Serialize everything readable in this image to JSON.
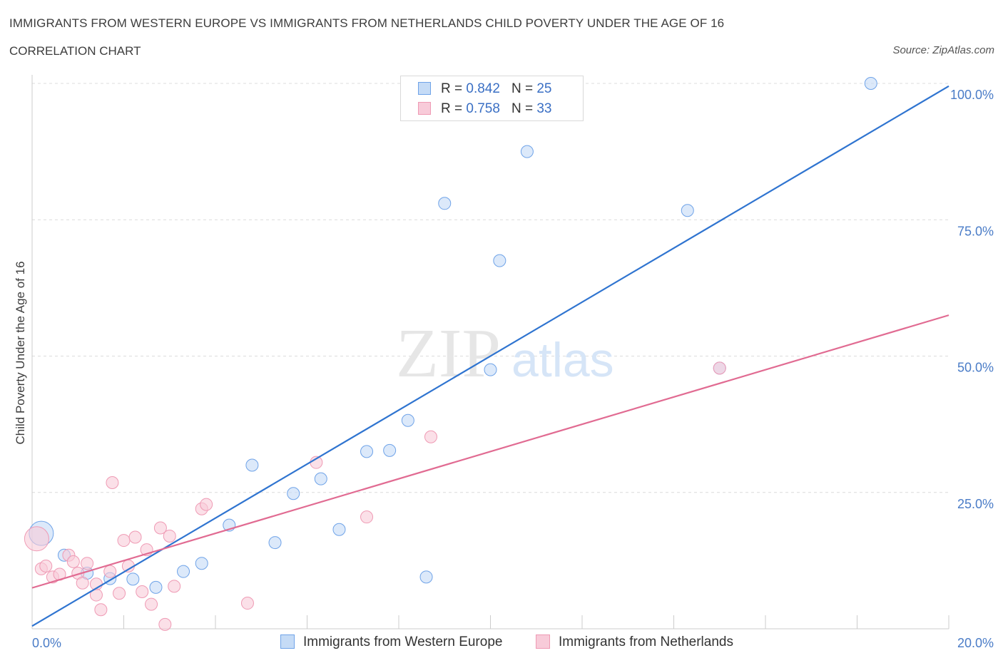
{
  "title": "IMMIGRANTS FROM WESTERN EUROPE VS IMMIGRANTS FROM NETHERLANDS CHILD POVERTY UNDER THE AGE OF 16",
  "subtitle": "CORRELATION CHART",
  "source": "Source: ZipAtlas.com",
  "watermark": {
    "zip": "ZIP",
    "atlas": "atlas"
  },
  "legend": {
    "r_label": "R =",
    "n_label": "N =",
    "series": [
      {
        "r": "0.842",
        "n": "25"
      },
      {
        "r": "0.758",
        "n": "33"
      }
    ]
  },
  "chart_data": {
    "type": "scatter",
    "title": "IMMIGRANTS FROM WESTERN EUROPE VS IMMIGRANTS FROM NETHERLANDS CHILD POVERTY UNDER THE AGE OF 16",
    "xlabel": "",
    "ylabel": "Child Poverty Under the Age of 16",
    "xlim": [
      0,
      20
    ],
    "ylim": [
      0,
      100
    ],
    "x_tick_labels": [
      "0.0%",
      "20.0%"
    ],
    "y_ticks": [
      25,
      50,
      75,
      100
    ],
    "y_tick_labels": [
      "25.0%",
      "50.0%",
      "75.0%",
      "100.0%"
    ],
    "grid": true,
    "series": [
      {
        "name": "Immigrants from Western Europe",
        "color": "#6fa3e8",
        "fill": "#c5dbf6",
        "line_color": "#2f74d0",
        "trend": {
          "x": [
            0,
            20
          ],
          "y": [
            0.5,
            99.5
          ]
        },
        "points": [
          {
            "x": 0.2,
            "y": 17.5,
            "big": true
          },
          {
            "x": 0.7,
            "y": 13.5
          },
          {
            "x": 1.2,
            "y": 10.2
          },
          {
            "x": 1.7,
            "y": 9.2
          },
          {
            "x": 2.2,
            "y": 9.1
          },
          {
            "x": 2.7,
            "y": 7.6
          },
          {
            "x": 3.3,
            "y": 10.5
          },
          {
            "x": 3.7,
            "y": 12.0
          },
          {
            "x": 4.3,
            "y": 19.0
          },
          {
            "x": 4.8,
            "y": 30.0
          },
          {
            "x": 5.3,
            "y": 15.8
          },
          {
            "x": 5.7,
            "y": 24.8
          },
          {
            "x": 6.3,
            "y": 27.5
          },
          {
            "x": 6.7,
            "y": 18.2
          },
          {
            "x": 7.3,
            "y": 32.5
          },
          {
            "x": 7.8,
            "y": 32.7
          },
          {
            "x": 8.2,
            "y": 38.2
          },
          {
            "x": 8.6,
            "y": 9.5
          },
          {
            "x": 9.0,
            "y": 78.0
          },
          {
            "x": 10.0,
            "y": 47.5
          },
          {
            "x": 10.2,
            "y": 67.5
          },
          {
            "x": 10.8,
            "y": 87.5
          },
          {
            "x": 14.3,
            "y": 76.7
          },
          {
            "x": 15.0,
            "y": 47.8
          },
          {
            "x": 18.3,
            "y": 100.0
          }
        ]
      },
      {
        "name": "Immigrants from Netherlands",
        "color": "#ef9ab4",
        "fill": "#f8cbd9",
        "line_color": "#e16b92",
        "trend": {
          "x": [
            0,
            20
          ],
          "y": [
            7.5,
            57.5
          ]
        },
        "points": [
          {
            "x": 0.1,
            "y": 16.5,
            "big": true
          },
          {
            "x": 0.2,
            "y": 11.0
          },
          {
            "x": 0.3,
            "y": 11.5
          },
          {
            "x": 0.45,
            "y": 9.5
          },
          {
            "x": 0.6,
            "y": 10.0
          },
          {
            "x": 0.8,
            "y": 13.5
          },
          {
            "x": 0.9,
            "y": 12.3
          },
          {
            "x": 1.0,
            "y": 10.2
          },
          {
            "x": 1.1,
            "y": 8.4
          },
          {
            "x": 1.2,
            "y": 12.0
          },
          {
            "x": 1.4,
            "y": 8.2
          },
          {
            "x": 1.4,
            "y": 6.2
          },
          {
            "x": 1.5,
            "y": 3.5
          },
          {
            "x": 1.7,
            "y": 10.5
          },
          {
            "x": 1.75,
            "y": 26.8
          },
          {
            "x": 1.9,
            "y": 6.5
          },
          {
            "x": 2.0,
            "y": 16.2
          },
          {
            "x": 2.1,
            "y": 11.5
          },
          {
            "x": 2.25,
            "y": 16.8
          },
          {
            "x": 2.4,
            "y": 6.8
          },
          {
            "x": 2.5,
            "y": 14.5
          },
          {
            "x": 2.6,
            "y": 4.5
          },
          {
            "x": 2.8,
            "y": 18.5
          },
          {
            "x": 2.9,
            "y": 0.8
          },
          {
            "x": 3.0,
            "y": 17.0
          },
          {
            "x": 3.1,
            "y": 7.8
          },
          {
            "x": 3.7,
            "y": 22.0
          },
          {
            "x": 3.8,
            "y": 22.8
          },
          {
            "x": 4.7,
            "y": 4.7
          },
          {
            "x": 6.2,
            "y": 30.5
          },
          {
            "x": 7.3,
            "y": 20.5
          },
          {
            "x": 8.7,
            "y": 35.2
          },
          {
            "x": 15.0,
            "y": 47.8
          }
        ]
      }
    ]
  },
  "bottom_legend": [
    "Immigrants from Western Europe",
    "Immigrants from Netherlands"
  ]
}
